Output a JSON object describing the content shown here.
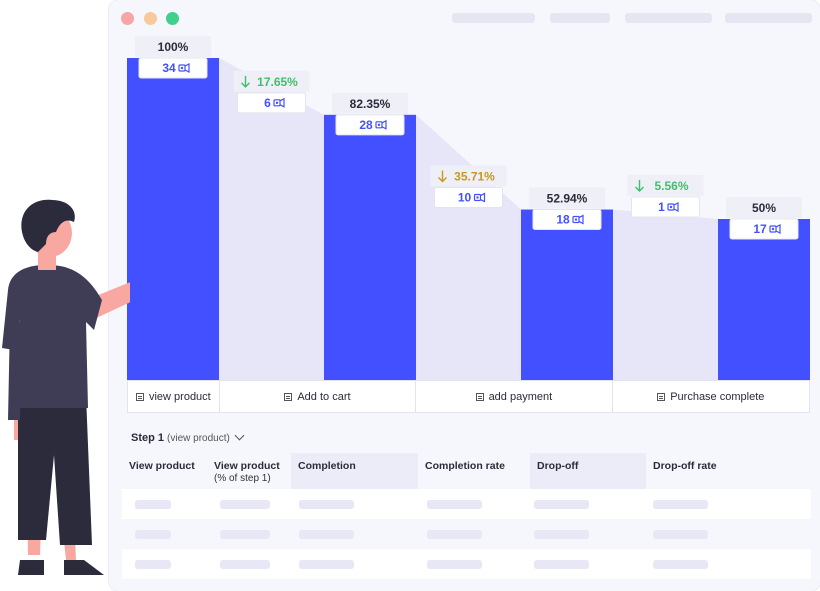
{
  "chart_data": {
    "type": "bar",
    "categories": [
      "view product",
      "Add to cart",
      "add payment",
      "Purchase complete"
    ],
    "values": [
      34,
      28,
      18,
      17
    ],
    "percent_of_first": [
      "100%",
      "82.35%",
      "52.94%",
      "50%"
    ],
    "dropoffs": [
      {
        "percent": "17.65%",
        "count": 6,
        "color": "#3fbf6a"
      },
      {
        "percent": "35.71%",
        "count": 10,
        "color": "#c49a1c"
      },
      {
        "percent": "5.56%",
        "count": 1,
        "color": "#3fbf6a"
      }
    ],
    "ylim": [
      0,
      34
    ],
    "colors": {
      "bar": "#4350ff",
      "dropoff_area": "#e6e6f8",
      "count_text": "#4350ff"
    }
  },
  "table": {
    "step_title": "Step 1",
    "step_sub": "(view product)",
    "columns": [
      {
        "label": "View product",
        "sub": ""
      },
      {
        "label": "View product",
        "sub": "(% of step 1)"
      },
      {
        "label": "Completion",
        "sub": ""
      },
      {
        "label": "Completion rate",
        "sub": ""
      },
      {
        "label": "Drop-off",
        "sub": ""
      },
      {
        "label": "Drop-off rate",
        "sub": ""
      }
    ]
  }
}
